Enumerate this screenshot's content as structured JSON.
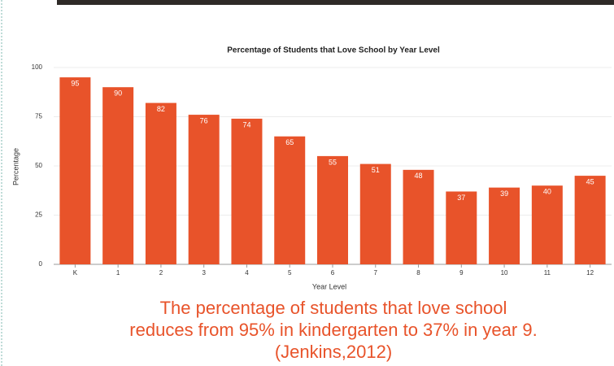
{
  "chart_data": {
    "type": "bar",
    "title": "Percentage of Students that Love School by Year Level",
    "x_label": "Year Level",
    "y_label": "Percentage",
    "categories": [
      "K",
      "1",
      "2",
      "3",
      "4",
      "5",
      "6",
      "7",
      "8",
      "9",
      "10",
      "11",
      "12"
    ],
    "values": [
      95,
      90,
      82,
      76,
      74,
      65,
      55,
      51,
      48,
      37,
      39,
      40,
      45
    ],
    "color": "#e8532a",
    "ylim": [
      0,
      100
    ],
    "yticks": [
      0,
      25,
      50,
      75,
      100
    ],
    "grid": true,
    "caption": [
      "The percentage of students that love school",
      "reduces from 95% in kindergarten to 37% in year 9.",
      "(Jenkins,2012)"
    ]
  }
}
